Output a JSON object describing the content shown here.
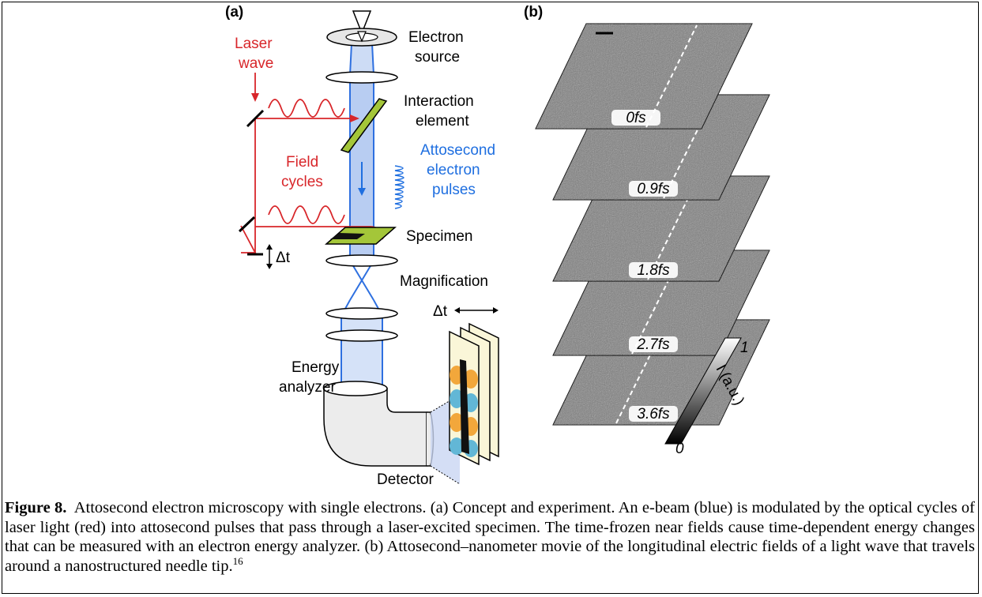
{
  "panel_a": {
    "label": "(a)",
    "electron_source": [
      "Electron",
      "source"
    ],
    "laser_wave": [
      "Laser",
      "wave"
    ],
    "interaction_element": [
      "Interaction",
      "element"
    ],
    "attosecond_pulses": [
      "Attosecond",
      "electron",
      "pulses"
    ],
    "field_cycles": [
      "Field",
      "cycles"
    ],
    "specimen": "Specimen",
    "delay": "Δt",
    "magnification": "Magnification",
    "energy_analyzer": [
      "Energy",
      "analyzer"
    ],
    "detector": "Detector",
    "detector_delay": "Δt"
  },
  "panel_b": {
    "label": "(b)",
    "frames": [
      "0fs",
      "0.9fs",
      "1.8fs",
      "2.7fs",
      "3.6fs"
    ],
    "colorbar": {
      "max": "1",
      "min": "0",
      "label": "I (a.u.)"
    }
  },
  "caption": {
    "figure_label": "Figure 8.",
    "text": "Attosecond electron microscopy with single electrons. (a) Concept and experiment. An e-beam (blue) is modulated by the optical cycles of laser light (red) into attosecond pulses that pass through a laser-excited specimen. The time-frozen near fields cause time-dependent energy changes that can be measured with an electron energy analyzer. (b) Attosecond–nanometer movie of the longitudinal electric fields of a light wave that travels around a nanostructured needle tip.",
    "reference": "16"
  }
}
